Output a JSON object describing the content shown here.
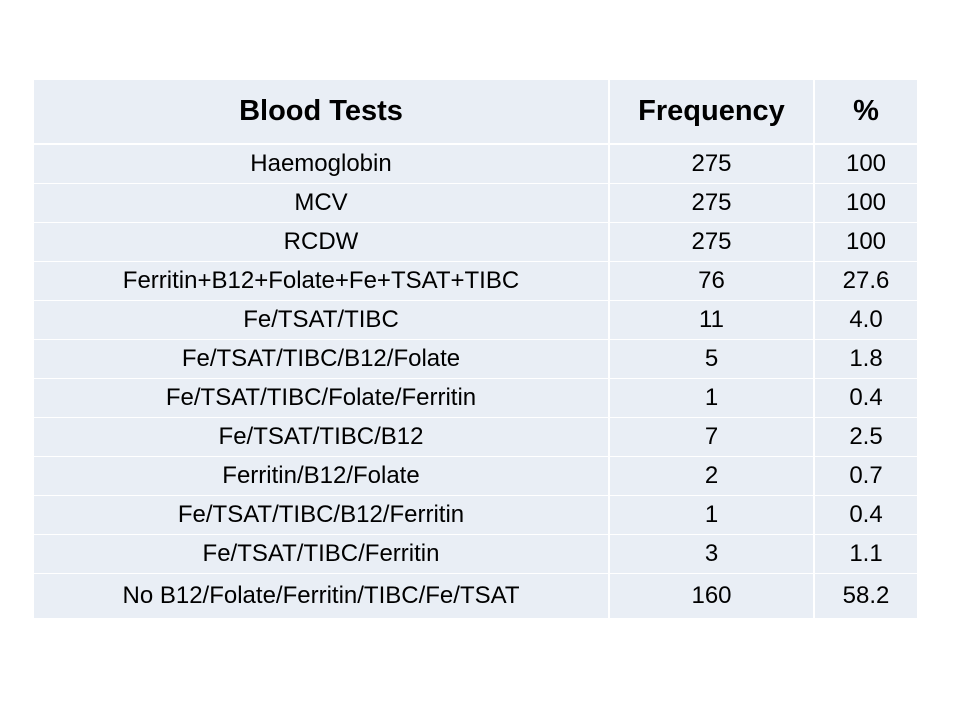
{
  "table": {
    "headers": [
      "Blood Tests",
      "Frequency",
      "%"
    ],
    "rows": [
      [
        "Haemoglobin",
        "275",
        "100"
      ],
      [
        "MCV",
        "275",
        "100"
      ],
      [
        "RCDW",
        "275",
        "100"
      ],
      [
        "Ferritin+B12+Folate+Fe+TSAT+TIBC",
        "76",
        "27.6"
      ],
      [
        "Fe/TSAT/TIBC",
        "11",
        "4.0"
      ],
      [
        "Fe/TSAT/TIBC/B12/Folate",
        "5",
        "1.8"
      ],
      [
        "Fe/TSAT/TIBC/Folate/Ferritin",
        "1",
        "0.4"
      ],
      [
        "Fe/TSAT/TIBC/B12",
        "7",
        "2.5"
      ],
      [
        "Ferritin/B12/Folate",
        "2",
        "0.7"
      ],
      [
        "Fe/TSAT/TIBC/B12/Ferritin",
        "1",
        "0.4"
      ],
      [
        "Fe/TSAT/TIBC/Ferritin",
        "3",
        "1.1"
      ],
      [
        "No B12/Folate/Ferritin/TIBC/Fe/TSAT",
        "160",
        "58.2"
      ]
    ]
  },
  "colors": {
    "cell_background": "#e9eef5",
    "grid_line": "#ffffff"
  }
}
